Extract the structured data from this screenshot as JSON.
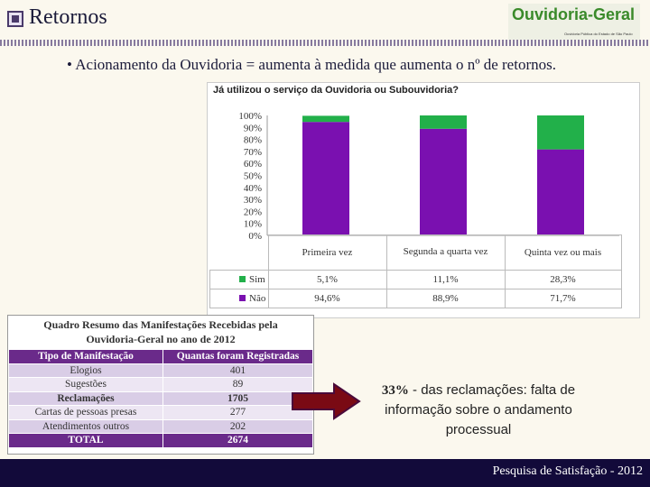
{
  "slide": {
    "title": "Retornos",
    "logo_text": "Ouvidoria-Geral",
    "logo_subtext": "Ouvidoria Pública do Estado de São Paulo",
    "bullet_strong": "Acionamento da Ouvidoria",
    "bullet_rest": " = aumenta à medida que aumenta o nº de retornos.",
    "bullet_symbol": "•",
    "footer": "Pesquisa de Satisfação - 2012"
  },
  "chart_data": {
    "type": "bar",
    "stacked": true,
    "title": "Já utilizou o serviço da Ouvidoria ou Subouvidoria?",
    "categories": [
      "Primeira vez",
      "Segunda a quarta vez",
      "Quinta vez ou mais"
    ],
    "series": [
      {
        "name": "Sim",
        "values": [
          5.1,
          11.1,
          28.3
        ],
        "labels": [
          "5,1%",
          "11,1%",
          "28,3%"
        ],
        "color": "#22b04a"
      },
      {
        "name": "Não",
        "values": [
          94.6,
          88.9,
          71.7
        ],
        "labels": [
          "94,6%",
          "88,9%",
          "71,7%"
        ],
        "color": "#7a10b0"
      }
    ],
    "yticks": [
      "100%",
      "90%",
      "80%",
      "70%",
      "60%",
      "50%",
      "40%",
      "30%",
      "20%",
      "10%",
      "0%"
    ],
    "ylim": [
      0,
      100
    ],
    "grid": false,
    "legend": "data-table"
  },
  "summary": {
    "title_line1": "Quadro Resumo das Manifestações Recebidas pela",
    "title_line2": "Ouvidoria-Geral no ano de 2012",
    "headers": [
      "Tipo de Manifestação",
      "Quantas foram Registradas"
    ],
    "rows": [
      {
        "type": "Elogios",
        "count": "401"
      },
      {
        "type": "Sugestões",
        "count": "89"
      },
      {
        "type": "Reclamações",
        "count": "1705"
      },
      {
        "type": "Cartas de pessoas presas",
        "count": "277"
      },
      {
        "type": "Atendimentos outros",
        "count": "202"
      }
    ],
    "total_label": "TOTAL",
    "total_value": "2674"
  },
  "callout": {
    "strong": "33%",
    "rest": " - das reclamações: falta de informação sobre o andamento processual"
  }
}
